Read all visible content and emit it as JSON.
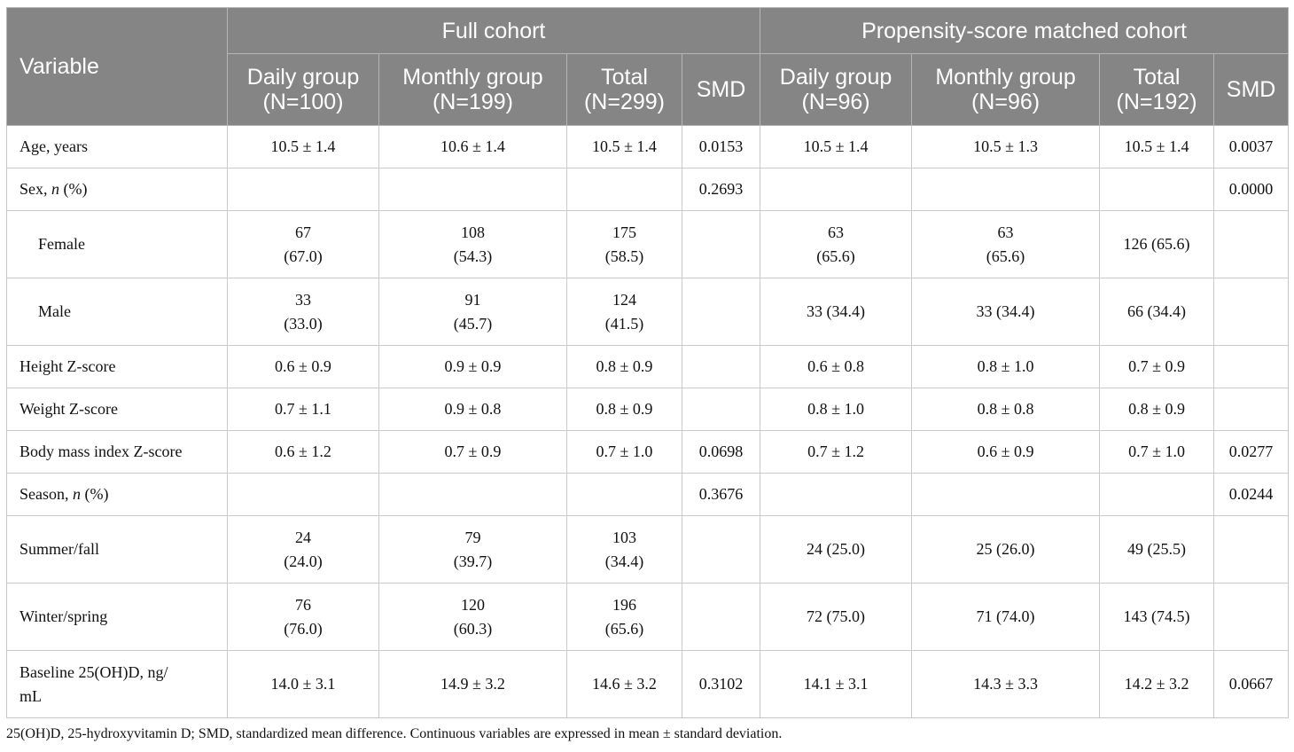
{
  "header": {
    "variable": "Variable",
    "full_cohort": "Full cohort",
    "matched_cohort": "Propensity-score matched cohort",
    "daily_full": [
      "Daily group",
      "(N=100)"
    ],
    "monthly_full": [
      "Monthly group",
      "(N=199)"
    ],
    "total_full": [
      "Total",
      "(N=299)"
    ],
    "smd": "SMD",
    "daily_matched": [
      "Daily group",
      "(N=96)"
    ],
    "monthly_matched": [
      "Monthly group",
      "(N=96)"
    ],
    "total_matched": [
      "Total",
      "(N=192)"
    ]
  },
  "rows": [
    {
      "label": "Age, years",
      "cells": [
        "10.5 ± 1.4",
        "10.6 ± 1.4",
        "10.5 ± 1.4",
        "0.0153",
        "10.5 ± 1.4",
        "10.5 ± 1.3",
        "10.5 ± 1.4",
        "0.0037"
      ]
    },
    {
      "label_pre": "Sex, ",
      "label_italic": "n",
      "label_post": " (%)",
      "cells": [
        "",
        "",
        "",
        "0.2693",
        "",
        "",
        "",
        "0.0000"
      ]
    },
    {
      "label": "Female",
      "cells": [
        [
          "67",
          "(67.0)"
        ],
        [
          "108",
          "(54.3)"
        ],
        [
          "175",
          "(58.5)"
        ],
        "",
        [
          "63",
          "(65.6)"
        ],
        [
          "63",
          "(65.6)"
        ],
        "126 (65.6)",
        ""
      ]
    },
    {
      "label": "Male",
      "cells": [
        [
          "33",
          "(33.0)"
        ],
        [
          "91",
          "(45.7)"
        ],
        [
          "124",
          "(41.5)"
        ],
        "",
        "33 (34.4)",
        "33 (34.4)",
        "66 (34.4)",
        ""
      ]
    },
    {
      "label": "Height Z-score",
      "cells": [
        "0.6 ± 0.9",
        "0.9 ± 0.9",
        "0.8 ± 0.9",
        "",
        "0.6 ± 0.8",
        "0.8 ± 1.0",
        "0.7 ± 0.9",
        ""
      ]
    },
    {
      "label": "Weight Z-score",
      "cells": [
        "0.7 ± 1.1",
        "0.9 ± 0.8",
        "0.8 ± 0.9",
        "",
        "0.8 ± 1.0",
        "0.8 ± 0.8",
        "0.8 ± 0.9",
        ""
      ]
    },
    {
      "label": "Body mass index Z-score",
      "cells": [
        "0.6 ± 1.2",
        "0.7 ± 0.9",
        "0.7 ± 1.0",
        "0.0698",
        "0.7 ± 1.2",
        "0.6 ± 0.9",
        "0.7 ± 1.0",
        "0.0277"
      ]
    },
    {
      "label_pre": "Season, ",
      "label_italic": "n",
      "label_post": " (%)",
      "cells": [
        "",
        "",
        "",
        "0.3676",
        "",
        "",
        "",
        "0.0244"
      ]
    },
    {
      "label": "Summer/fall",
      "cells": [
        [
          "24",
          "(24.0)"
        ],
        [
          "79",
          "(39.7)"
        ],
        [
          "103",
          "(34.4)"
        ],
        "",
        "24 (25.0)",
        "25 (26.0)",
        "49 (25.5)",
        ""
      ]
    },
    {
      "label": "Winter/spring",
      "cells": [
        [
          "76",
          "(76.0)"
        ],
        [
          "120",
          "(60.3)"
        ],
        [
          "196",
          "(65.6)"
        ],
        "",
        "72 (75.0)",
        "71 (74.0)",
        "143 (74.5)",
        ""
      ]
    },
    {
      "label_lines": [
        "Baseline 25(OH)D, ng/",
        "mL"
      ],
      "cells": [
        "14.0 ± 3.1",
        "14.9 ± 3.2",
        "14.6 ± 3.2",
        "0.3102",
        "14.1 ± 3.1",
        "14.3 ± 3.3",
        "14.2 ± 3.2",
        "0.0667"
      ]
    }
  ],
  "footnote": "25(OH)D, 25-hydroxyvitamin D; SMD, standardized mean difference. Continuous variables are expressed in mean ± standard deviation."
}
